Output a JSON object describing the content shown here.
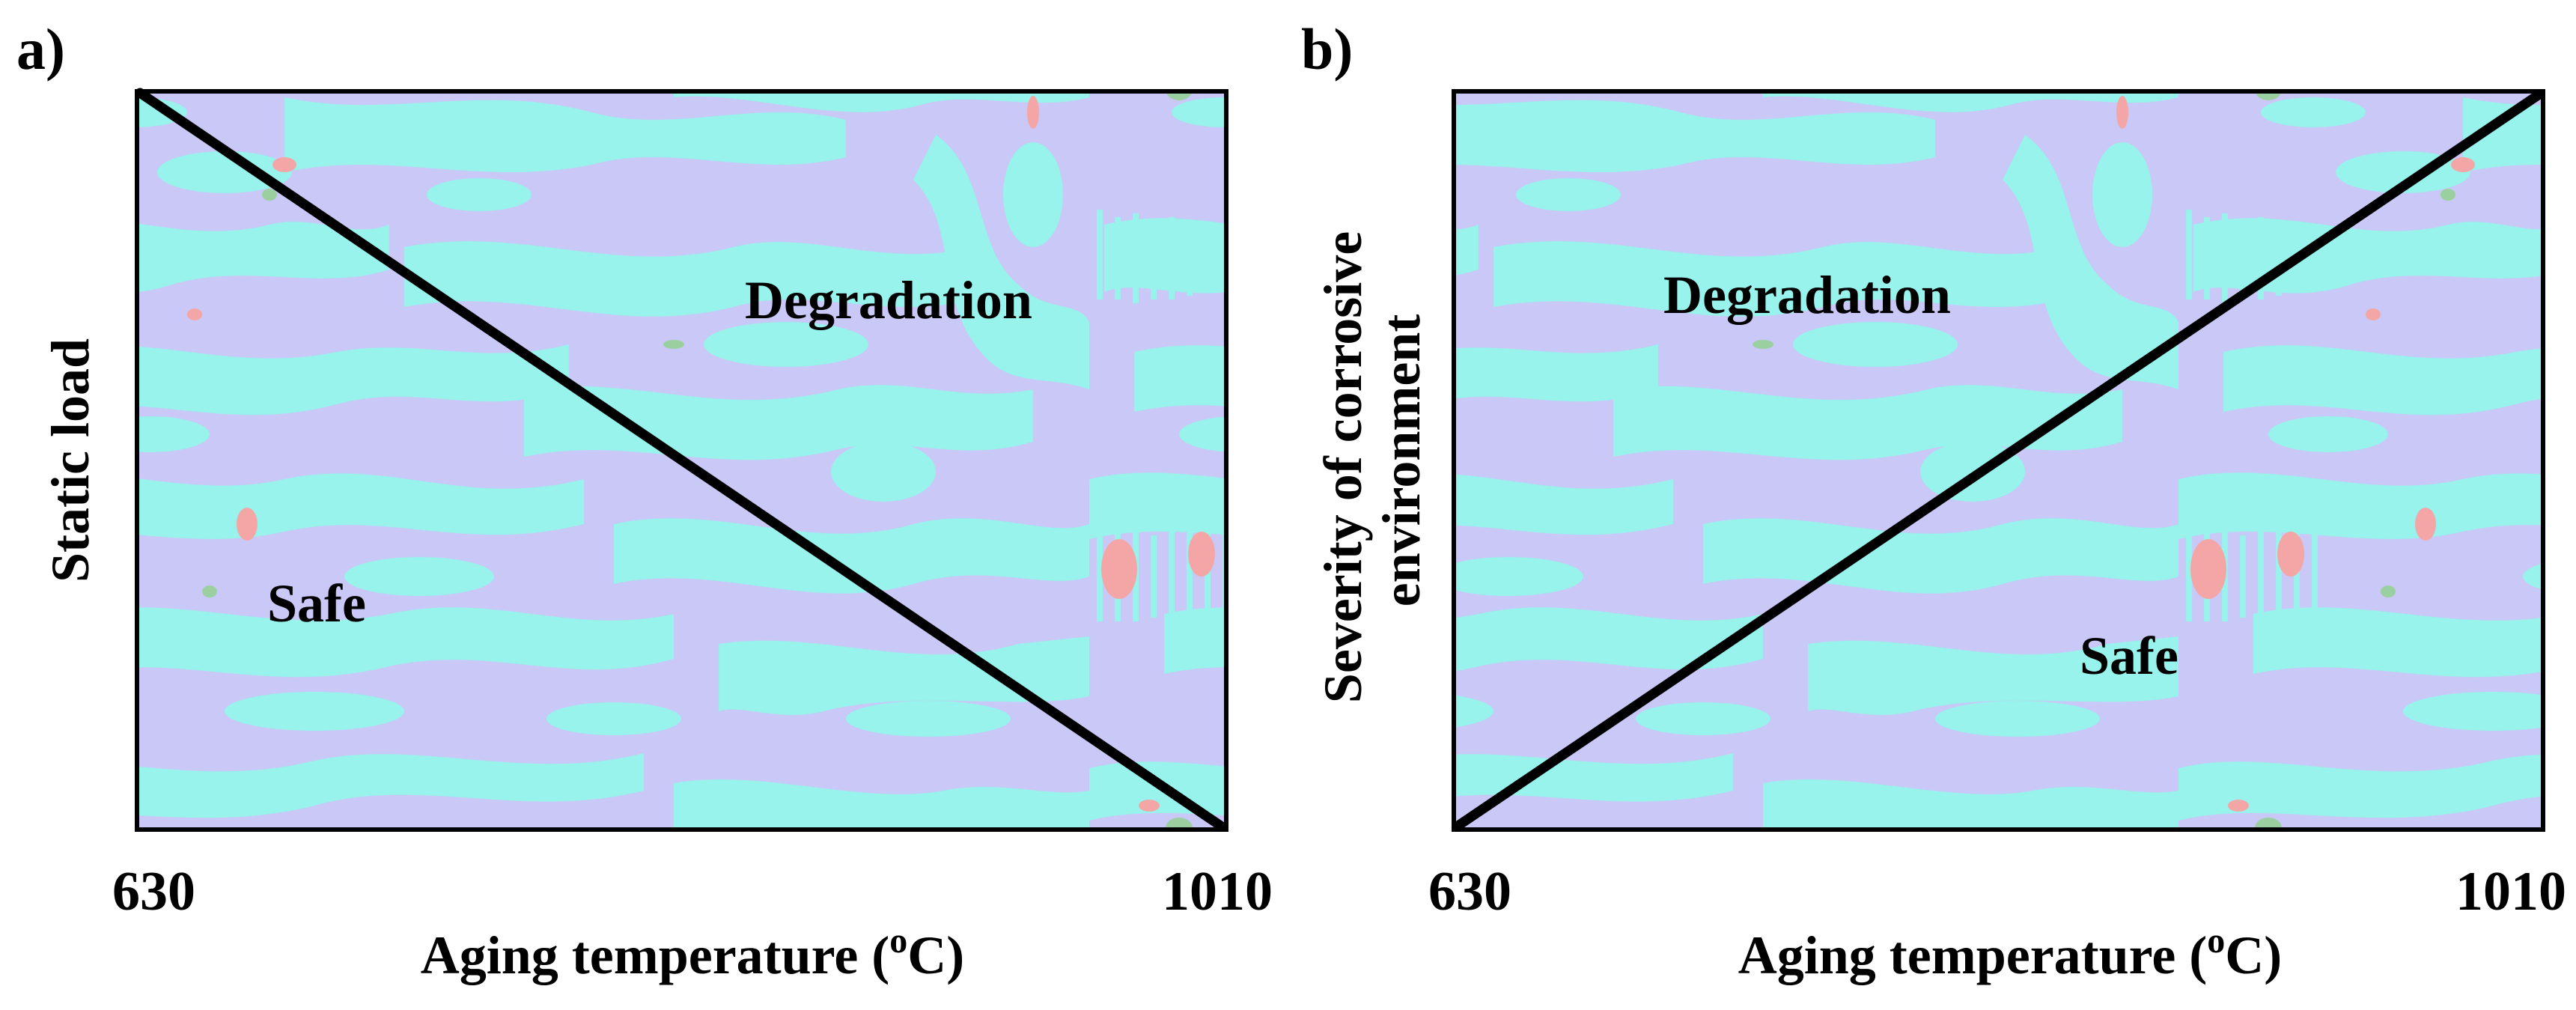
{
  "chart_data": [
    {
      "type": "regime-map",
      "panel": "a)",
      "xlabel": "Aging temperature (",
      "xlabel_sup": "o",
      "xlabel_unit": "C)",
      "ylabel": "Static load",
      "ylabel_line2": "",
      "x_ticks": [
        "630",
        "1010"
      ],
      "xlim": [
        630,
        1010
      ],
      "boundary": {
        "from": "top-left",
        "to": "bottom-right"
      },
      "regions": [
        {
          "label": "Degradation",
          "position": "upper-right"
        },
        {
          "label": "Safe",
          "position": "lower-left"
        }
      ]
    },
    {
      "type": "regime-map",
      "panel": "b)",
      "xlabel": "Aging temperature (",
      "xlabel_sup": "o",
      "xlabel_unit": "C)",
      "ylabel": "Severity of corrosive",
      "ylabel_line2": "environment",
      "x_ticks": [
        "630",
        "1010"
      ],
      "xlim": [
        630,
        1010
      ],
      "boundary": {
        "from": "bottom-left",
        "to": "top-right"
      },
      "regions": [
        {
          "label": "Degradation",
          "position": "upper-left"
        },
        {
          "label": "Safe",
          "position": "lower-right"
        }
      ]
    }
  ],
  "colors": {
    "matrix": "#c9c8f6",
    "phase": "#97f3ec",
    "speck_red": "#f4a6a6",
    "speck_green": "#9ad0a0",
    "line": "#000000"
  }
}
